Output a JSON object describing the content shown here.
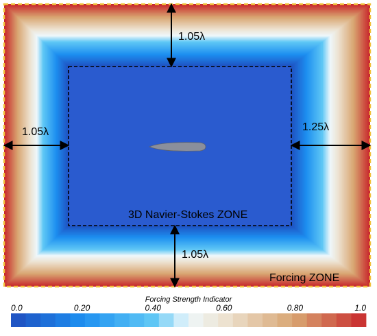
{
  "diagram": {
    "dist_top": "1.05λ",
    "dist_left": "1.05λ",
    "dist_right": "1.25λ",
    "dist_bottom": "1.05λ",
    "inner_zone_label": "3D Navier-Stokes ZONE",
    "outer_zone_label": "Forcing ZONE",
    "object_icon": "airfoil-shape-icon"
  },
  "colorbar": {
    "title": "Forcing Strength Indicator",
    "ticks": [
      "0.0",
      "0.20",
      "0.40",
      "0.60",
      "0.80",
      "1.0"
    ],
    "tick_values": [
      0.0,
      0.2,
      0.4,
      0.6,
      0.8,
      1.0
    ],
    "segments": 24,
    "colormap": [
      {
        "value": 0.0,
        "color": "#1f4ebf"
      },
      {
        "value": 0.2,
        "color": "#1d8ff0"
      },
      {
        "value": 0.4,
        "color": "#5fc7f5"
      },
      {
        "value": 0.5,
        "color": "#eef7fb"
      },
      {
        "value": 0.6,
        "color": "#ede3d2"
      },
      {
        "value": 0.8,
        "color": "#d8a470"
      },
      {
        "value": 1.0,
        "color": "#c8282c"
      }
    ]
  },
  "colors": {
    "inner_zone": "#2a5bcf",
    "boundary_dash": "#f2c13a",
    "outer_edge": "#c8282c"
  }
}
